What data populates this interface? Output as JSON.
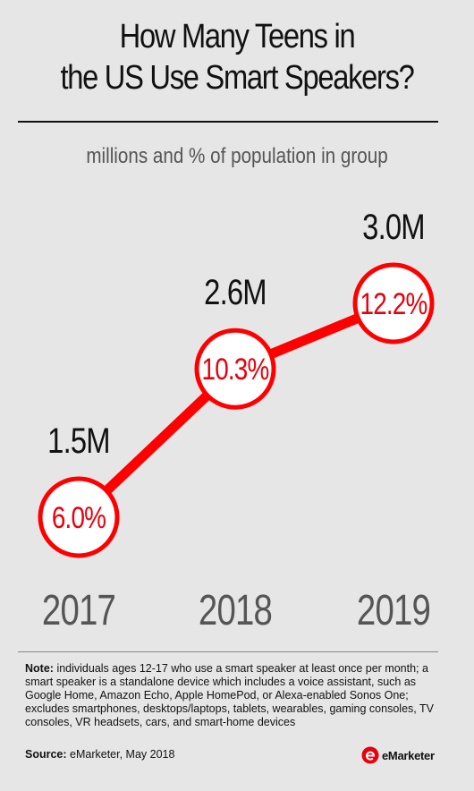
{
  "title_line1": "How Many Teens in",
  "title_line2": "the US Use Smart Speakers?",
  "subtitle": "millions and % of population in group",
  "note_label": "Note:",
  "note_text": "individuals ages 12-17 who use a smart speaker at least once per month; a smart speaker is a standalone device which includes a voice assistant, such as Google Home, Amazon Echo, Apple HomePod, or Alexa-enabled Sonos One; excludes smartphones, desktops/laptops, tablets, wearables, gaming consoles, TV consoles, VR headsets, cars, and smart-home devices",
  "source_label": "Source:",
  "source_text": "eMarketer, May 2018",
  "brand": "eMarketer",
  "colors": {
    "line": "#ff0000",
    "circle_fill": "#ffffff",
    "label": "#e8000d",
    "year": "#555555"
  },
  "chart_data": {
    "type": "line",
    "categories": [
      "2017",
      "2018",
      "2019"
    ],
    "series": [
      {
        "values": [
          1.5,
          2.6,
          3.0
        ],
        "labels": [
          "1.5M",
          "2.6M",
          "3.0M"
        ]
      },
      {
        "values": [
          6.0,
          10.3,
          12.2
        ],
        "labels": [
          "6.0%",
          "10.3%",
          "12.2%"
        ]
      }
    ],
    "title": "How Many Teens in the US Use Smart Speakers?",
    "subtitle": "millions and % of population in group",
    "ylim": [
      6.0,
      12.2
    ]
  }
}
